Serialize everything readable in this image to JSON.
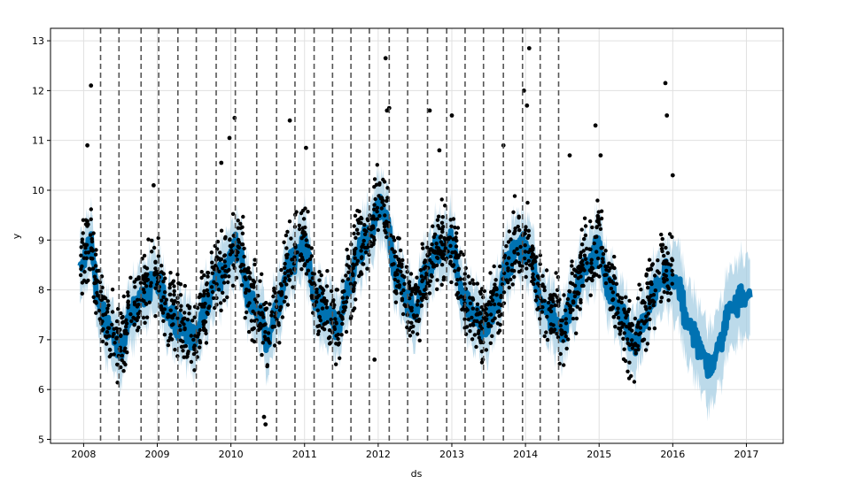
{
  "chart_data": {
    "type": "scatter",
    "title": "",
    "xlabel": "ds",
    "ylabel": "y",
    "xlim": [
      2007.55,
      2017.5
    ],
    "ylim": [
      4.92,
      13.25
    ],
    "x_ticks": [
      2008,
      2009,
      2010,
      2011,
      2012,
      2013,
      2014,
      2015,
      2016,
      2017
    ],
    "x_tick_labels": [
      "2008",
      "2009",
      "2010",
      "2011",
      "2012",
      "2013",
      "2014",
      "2015",
      "2016",
      "2017"
    ],
    "y_ticks": [
      5,
      6,
      7,
      8,
      9,
      10,
      11,
      12,
      13
    ],
    "y_tick_labels": [
      "5",
      "6",
      "7",
      "8",
      "9",
      "10",
      "11",
      "12",
      "13"
    ],
    "grid": true,
    "colors": {
      "observed_points": "#000000",
      "forecast_line": "#0072B2",
      "uncertainty_band": "#A6CEE3",
      "changepoint_lines": "#555555",
      "grid": "#e0e0e0"
    },
    "observed_range": [
      2007.95,
      2016.0
    ],
    "forecast_range": [
      2007.95,
      2017.05
    ],
    "changepoints": [
      2008.23,
      2008.48,
      2008.78,
      2009.02,
      2009.28,
      2009.53,
      2009.8,
      2010.06,
      2010.35,
      2010.62,
      2010.87,
      2011.13,
      2011.38,
      2011.63,
      2011.88,
      2012.15,
      2012.4,
      2012.67,
      2012.93,
      2013.18,
      2013.43,
      2013.7,
      2013.96,
      2014.2,
      2014.45
    ],
    "forecast_anchors": {
      "x": [
        2007.97,
        2008.1,
        2008.2,
        2008.35,
        2008.5,
        2008.65,
        2008.8,
        2009.0,
        2009.15,
        2009.3,
        2009.5,
        2009.65,
        2009.8,
        2009.95,
        2010.1,
        2010.25,
        2010.4,
        2010.5,
        2010.65,
        2010.8,
        2011.0,
        2011.15,
        2011.3,
        2011.45,
        2011.6,
        2011.75,
        2011.9,
        2012.0,
        2012.1,
        2012.25,
        2012.4,
        2012.5,
        2012.65,
        2012.8,
        2013.0,
        2013.15,
        2013.3,
        2013.45,
        2013.6,
        2013.75,
        2013.9,
        2014.05,
        2014.2,
        2014.35,
        2014.5,
        2014.65,
        2014.8,
        2015.0,
        2015.15,
        2015.3,
        2015.45,
        2015.6,
        2015.75,
        2015.9,
        2016.05,
        2016.2,
        2016.35,
        2016.5,
        2016.65,
        2016.8,
        2016.95,
        2017.05
      ],
      "y": [
        8.5,
        8.9,
        7.7,
        7.2,
        6.8,
        7.5,
        7.9,
        8.2,
        7.5,
        7.3,
        7.0,
        7.6,
        8.2,
        8.5,
        8.9,
        7.8,
        7.5,
        7.0,
        7.7,
        8.5,
        8.9,
        7.8,
        7.5,
        7.3,
        8.0,
        8.8,
        9.2,
        9.6,
        9.5,
        8.3,
        7.8,
        7.5,
        8.3,
        8.8,
        8.9,
        7.9,
        7.5,
        7.2,
        7.7,
        8.5,
        8.9,
        8.8,
        7.8,
        7.5,
        7.2,
        7.8,
        8.5,
        8.8,
        8.0,
        7.5,
        6.9,
        7.3,
        8.0,
        8.3,
        8.2,
        7.4,
        6.9,
        6.4,
        7.0,
        7.7,
        7.8,
        7.9
      ]
    },
    "observed_outliers": {
      "x": [
        2008.1,
        2008.05,
        2008.95,
        2009.87,
        2009.98,
        2010.05,
        2010.45,
        2010.47,
        2010.8,
        2011.02,
        2012.1,
        2012.12,
        2012.15,
        2012.7,
        2012.83,
        2013.0,
        2013.7,
        2013.98,
        2014.02,
        2014.05,
        2014.6,
        2014.95,
        2015.02,
        2015.9,
        2015.92,
        2016.0,
        2013.42,
        2011.95
      ],
      "y": [
        12.1,
        10.9,
        10.1,
        10.55,
        11.05,
        11.45,
        5.45,
        5.3,
        11.4,
        10.85,
        12.65,
        11.6,
        11.65,
        11.6,
        10.8,
        11.5,
        10.9,
        12.0,
        11.7,
        12.85,
        10.7,
        11.3,
        10.7,
        12.15,
        11.5,
        10.3,
        6.6,
        6.6
      ]
    }
  }
}
